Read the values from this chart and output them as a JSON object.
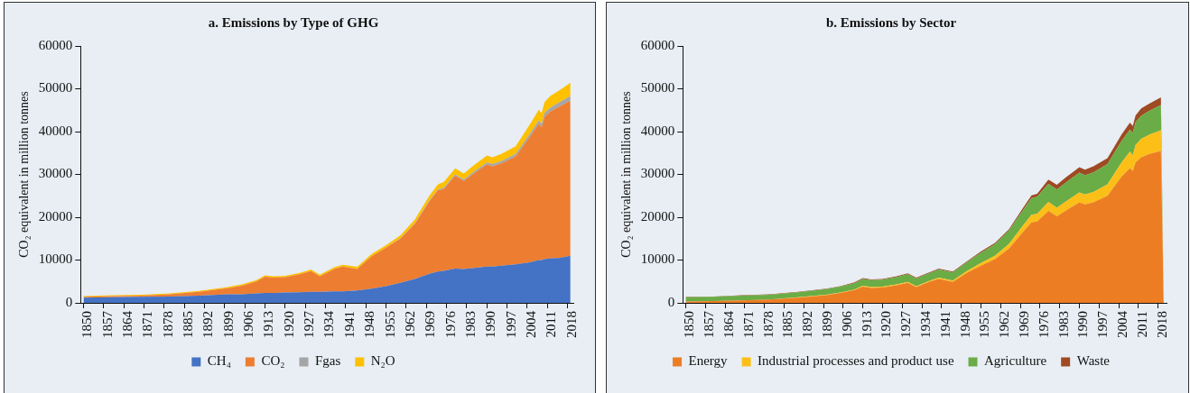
{
  "chart_data": [
    {
      "type": "area",
      "title": "a. Emissions by Type of GHG",
      "ylabel": "CO₂ equivalent in million tonnes",
      "stacked": true,
      "legend": "bottom",
      "grid": false,
      "x": [
        1850,
        1860,
        1870,
        1880,
        1890,
        1900,
        1905,
        1910,
        1913,
        1916,
        1920,
        1925,
        1929,
        1932,
        1937,
        1940,
        1945,
        1950,
        1955,
        1960,
        1965,
        1970,
        1973,
        1975,
        1979,
        1982,
        1985,
        1990,
        1992,
        1995,
        2000,
        2005,
        2008,
        2009,
        2010,
        2012,
        2015,
        2019
      ],
      "xlim": [
        1849,
        2020
      ],
      "xticks": [
        1850,
        1857,
        1864,
        1871,
        1878,
        1885,
        1892,
        1899,
        1906,
        1913,
        1920,
        1927,
        1934,
        1941,
        1948,
        1955,
        1962,
        1969,
        1976,
        1983,
        1990,
        1997,
        2004,
        2011,
        2018
      ],
      "ylim": [
        0,
        60000
      ],
      "yticks": [
        0,
        10000,
        20000,
        30000,
        40000,
        50000,
        60000
      ],
      "series": [
        {
          "name": "CH₄",
          "color": "#4472c4",
          "values": [
            1200,
            1300,
            1400,
            1500,
            1700,
            2000,
            2000,
            2200,
            2300,
            2300,
            2400,
            2500,
            2600,
            2600,
            2700,
            2700,
            2900,
            3300,
            3900,
            4700,
            5600,
            6800,
            7300,
            7500,
            8000,
            7900,
            8100,
            8500,
            8500,
            8700,
            9000,
            9500,
            10000,
            10000,
            10200,
            10400,
            10500,
            11000
          ]
        },
        {
          "name": "CO₂",
          "color": "#ed7d31",
          "values": [
            200,
            300,
            300,
            500,
            900,
            1400,
            2000,
            2800,
            3800,
            3600,
            3600,
            4200,
            4800,
            3600,
            5200,
            5800,
            5000,
            7600,
            9000,
            10300,
            12900,
            16900,
            19000,
            19100,
            21700,
            20600,
            21900,
            23800,
            23400,
            23900,
            25200,
            29400,
            31800,
            31000,
            33200,
            34300,
            35300,
            36200
          ]
        },
        {
          "name": "Fgas",
          "color": "#a5a5a5",
          "values": [
            0,
            0,
            0,
            0,
            0,
            0,
            0,
            0,
            0,
            0,
            0,
            0,
            0,
            0,
            0,
            0,
            0,
            0,
            0,
            100,
            100,
            200,
            200,
            300,
            300,
            300,
            400,
            500,
            500,
            500,
            600,
            700,
            800,
            800,
            900,
            900,
            1000,
            1100
          ]
        },
        {
          "name": "N₂O",
          "color": "#ffc000",
          "values": [
            200,
            200,
            200,
            200,
            200,
            300,
            300,
            300,
            300,
            300,
            300,
            300,
            400,
            400,
            400,
            400,
            500,
            500,
            600,
            700,
            900,
            1100,
            1200,
            1300,
            1400,
            1400,
            1500,
            1600,
            1600,
            1700,
            1800,
            2200,
            2500,
            2500,
            2600,
            2700,
            2800,
            3100
          ]
        }
      ]
    },
    {
      "type": "area",
      "title": "b. Emissions by Sector",
      "ylabel": "CO₂ equivalent in million tonnes",
      "stacked": true,
      "legend": "bottom",
      "grid": false,
      "x": [
        1850,
        1860,
        1870,
        1880,
        1890,
        1900,
        1905,
        1910,
        1913,
        1916,
        1920,
        1925,
        1929,
        1932,
        1937,
        1940,
        1945,
        1950,
        1955,
        1960,
        1965,
        1970,
        1973,
        1975,
        1979,
        1982,
        1985,
        1990,
        1992,
        1995,
        2000,
        2005,
        2008,
        2009,
        2010,
        2012,
        2015,
        2019,
        2020
      ],
      "xlim": [
        1849,
        2021
      ],
      "xticks": [
        1850,
        1857,
        1864,
        1871,
        1878,
        1885,
        1892,
        1899,
        1906,
        1913,
        1920,
        1927,
        1934,
        1941,
        1948,
        1955,
        1962,
        1969,
        1976,
        1983,
        1990,
        1997,
        2004,
        2011,
        2018
      ],
      "ylim": [
        0,
        60000
      ],
      "yticks": [
        0,
        10000,
        20000,
        30000,
        40000,
        50000,
        60000
      ],
      "series": [
        {
          "name": "Energy",
          "color": "#ed7d22",
          "values": [
            300,
            400,
            600,
            800,
            1200,
            1800,
            2300,
            3000,
            3800,
            3500,
            3600,
            4100,
            4700,
            3700,
            5000,
            5600,
            4900,
            7000,
            8700,
            10200,
            12700,
            16600,
            18800,
            19000,
            21500,
            20200,
            21500,
            23500,
            23000,
            23500,
            25000,
            29500,
            31500,
            30800,
            32800,
            34000,
            34800,
            35500,
            0
          ]
        },
        {
          "name": "Industrial processes and product use",
          "color": "#fcbf17",
          "values": [
            0,
            0,
            0,
            0,
            100,
            100,
            100,
            100,
            200,
            200,
            200,
            200,
            200,
            200,
            200,
            300,
            300,
            400,
            600,
            800,
            1100,
            1500,
            1800,
            1800,
            2100,
            2000,
            2100,
            2300,
            2300,
            2400,
            2700,
            3300,
            3800,
            3700,
            4100,
            4300,
            4500,
            4800,
            0
          ]
        },
        {
          "name": "Agriculture",
          "color": "#6aac46",
          "values": [
            1000,
            1000,
            1100,
            1100,
            1200,
            1300,
            1400,
            1500,
            1600,
            1600,
            1600,
            1700,
            1800,
            1800,
            1800,
            1900,
            1900,
            2100,
            2400,
            2700,
            3100,
            3600,
            3900,
            4000,
            4200,
            4300,
            4400,
            4600,
            4500,
            4600,
            4700,
            5000,
            5200,
            5200,
            5300,
            5400,
            5600,
            5900,
            0
          ]
        },
        {
          "name": "Waste",
          "color": "#9e4a23",
          "values": [
            100,
            100,
            100,
            100,
            100,
            100,
            100,
            200,
            200,
            200,
            200,
            200,
            200,
            200,
            200,
            200,
            200,
            200,
            300,
            300,
            300,
            500,
            600,
            700,
            1000,
            1100,
            1200,
            1300,
            1300,
            1400,
            1400,
            1500,
            1600,
            1600,
            1600,
            1700,
            1700,
            1800,
            0
          ]
        }
      ]
    }
  ]
}
